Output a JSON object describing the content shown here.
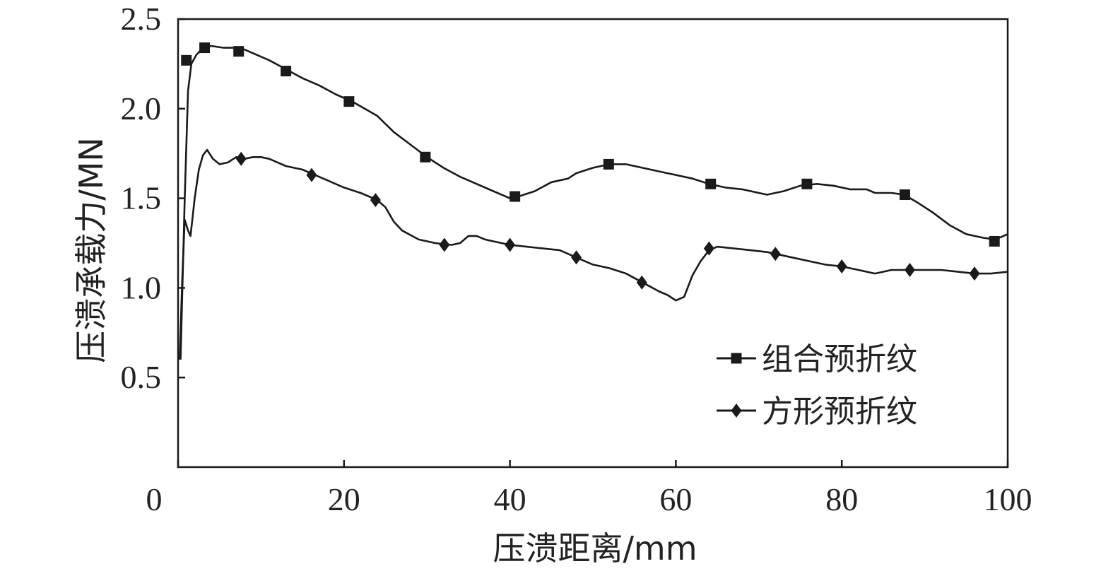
{
  "chart_data": {
    "type": "line",
    "title": "",
    "xlabel": "压溃距离/mm",
    "ylabel": "压溃承载力/MN",
    "xlim": [
      0,
      100
    ],
    "ylim": [
      0,
      2.5
    ],
    "x_ticks": [
      "0",
      "20",
      "40",
      "60",
      "80",
      "100"
    ],
    "y_ticks": [
      "0.5",
      "1.0",
      "1.5",
      "2.0",
      "2.5"
    ],
    "grid": false,
    "legend_position": "bottom-right",
    "series": [
      {
        "name": "组合预折纹",
        "marker": "square",
        "color": "#1a1a1a",
        "curve": [
          [
            0.3,
            0.6
          ],
          [
            0.8,
            1.5
          ],
          [
            1.2,
            2.1
          ],
          [
            1.6,
            2.25
          ],
          [
            2.2,
            2.3
          ],
          [
            3,
            2.34
          ],
          [
            4,
            2.35
          ],
          [
            5.5,
            2.34
          ],
          [
            7,
            2.34
          ],
          [
            8,
            2.33
          ],
          [
            9,
            2.31
          ],
          [
            11,
            2.27
          ],
          [
            13,
            2.22
          ],
          [
            15,
            2.17
          ],
          [
            17,
            2.13
          ],
          [
            19,
            2.08
          ],
          [
            21,
            2.04
          ],
          [
            24,
            1.96
          ],
          [
            26,
            1.87
          ],
          [
            28,
            1.8
          ],
          [
            30,
            1.73
          ],
          [
            32,
            1.67
          ],
          [
            34,
            1.62
          ],
          [
            36,
            1.58
          ],
          [
            38,
            1.54
          ],
          [
            40,
            1.5
          ],
          [
            41,
            1.51
          ],
          [
            43,
            1.54
          ],
          [
            45,
            1.59
          ],
          [
            47,
            1.61
          ],
          [
            48,
            1.64
          ],
          [
            50,
            1.67
          ],
          [
            52,
            1.69
          ],
          [
            54,
            1.69
          ],
          [
            56,
            1.67
          ],
          [
            58,
            1.65
          ],
          [
            60,
            1.63
          ],
          [
            62,
            1.61
          ],
          [
            64,
            1.58
          ],
          [
            66,
            1.56
          ],
          [
            68,
            1.55
          ],
          [
            70,
            1.53
          ],
          [
            71,
            1.52
          ],
          [
            73,
            1.54
          ],
          [
            75,
            1.57
          ],
          [
            77,
            1.58
          ],
          [
            79,
            1.57
          ],
          [
            81,
            1.55
          ],
          [
            83,
            1.55
          ],
          [
            84,
            1.53
          ],
          [
            86,
            1.53
          ],
          [
            87.5,
            1.52
          ],
          [
            89,
            1.48
          ],
          [
            91,
            1.42
          ],
          [
            93,
            1.35
          ],
          [
            95,
            1.3
          ],
          [
            97,
            1.28
          ],
          [
            98.5,
            1.27
          ],
          [
            100,
            1.3
          ]
        ],
        "marker_points": [
          [
            1,
            2.27
          ],
          [
            3.2,
            2.34
          ],
          [
            7.3,
            2.32
          ],
          [
            13,
            2.21
          ],
          [
            20.6,
            2.04
          ],
          [
            29.8,
            1.73
          ],
          [
            40.6,
            1.51
          ],
          [
            51.9,
            1.69
          ],
          [
            64.2,
            1.58
          ],
          [
            75.8,
            1.58
          ],
          [
            87.6,
            1.52
          ],
          [
            98.4,
            1.26
          ]
        ]
      },
      {
        "name": "方形预折纹",
        "marker": "diamond",
        "color": "#1a1a1a",
        "curve": [
          [
            0.2,
            0.6
          ],
          [
            0.5,
            1.05
          ],
          [
            0.8,
            1.38
          ],
          [
            1.2,
            1.32
          ],
          [
            1.5,
            1.29
          ],
          [
            2,
            1.5
          ],
          [
            2.5,
            1.66
          ],
          [
            3,
            1.74
          ],
          [
            3.5,
            1.77
          ],
          [
            4.2,
            1.72
          ],
          [
            5,
            1.69
          ],
          [
            6,
            1.7
          ],
          [
            7,
            1.73
          ],
          [
            8,
            1.72
          ],
          [
            9,
            1.73
          ],
          [
            10,
            1.73
          ],
          [
            11,
            1.72
          ],
          [
            12,
            1.7
          ],
          [
            13,
            1.68
          ],
          [
            14,
            1.67
          ],
          [
            15,
            1.66
          ],
          [
            16,
            1.64
          ],
          [
            18,
            1.6
          ],
          [
            20,
            1.56
          ],
          [
            22,
            1.53
          ],
          [
            24,
            1.49
          ],
          [
            25,
            1.45
          ],
          [
            26,
            1.37
          ],
          [
            27,
            1.32
          ],
          [
            29,
            1.27
          ],
          [
            31,
            1.25
          ],
          [
            33,
            1.24
          ],
          [
            34,
            1.25
          ],
          [
            35,
            1.29
          ],
          [
            36,
            1.29
          ],
          [
            37,
            1.27
          ],
          [
            38,
            1.26
          ],
          [
            40,
            1.24
          ],
          [
            42,
            1.23
          ],
          [
            44,
            1.22
          ],
          [
            46,
            1.21
          ],
          [
            48,
            1.17
          ],
          [
            50,
            1.13
          ],
          [
            52,
            1.11
          ],
          [
            54,
            1.08
          ],
          [
            56,
            1.03
          ],
          [
            58,
            0.98
          ],
          [
            59,
            0.96
          ],
          [
            60,
            0.93
          ],
          [
            61,
            0.95
          ],
          [
            62,
            1.07
          ],
          [
            63,
            1.15
          ],
          [
            64,
            1.21
          ],
          [
            65,
            1.23
          ],
          [
            67,
            1.22
          ],
          [
            69,
            1.21
          ],
          [
            71,
            1.2
          ],
          [
            72,
            1.19
          ],
          [
            74,
            1.17
          ],
          [
            76,
            1.15
          ],
          [
            78,
            1.13
          ],
          [
            80,
            1.12
          ],
          [
            82,
            1.1
          ],
          [
            84,
            1.08
          ],
          [
            86,
            1.1
          ],
          [
            88,
            1.1
          ],
          [
            90,
            1.1
          ],
          [
            92,
            1.1
          ],
          [
            94,
            1.09
          ],
          [
            96,
            1.08
          ],
          [
            98,
            1.08
          ],
          [
            100,
            1.09
          ]
        ],
        "marker_points": [
          [
            7.6,
            1.72
          ],
          [
            16.1,
            1.63
          ],
          [
            23.8,
            1.49
          ],
          [
            32.1,
            1.24
          ],
          [
            40,
            1.24
          ],
          [
            48,
            1.17
          ],
          [
            55.9,
            1.03
          ],
          [
            64,
            1.22
          ],
          [
            72,
            1.19
          ],
          [
            80,
            1.12
          ],
          [
            88.2,
            1.1
          ],
          [
            96,
            1.08
          ]
        ]
      }
    ]
  }
}
